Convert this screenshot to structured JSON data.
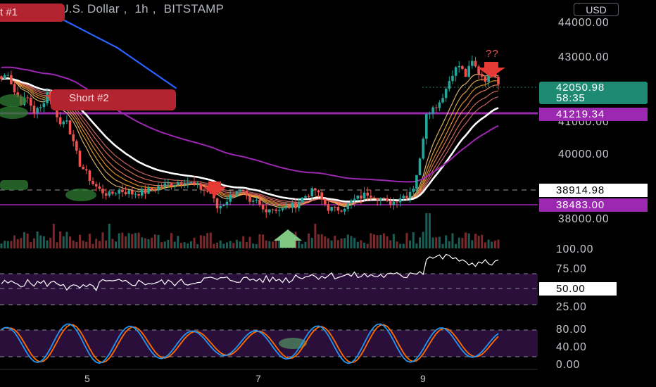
{
  "header": {
    "symbol": "Bitcoin / U.S. Dollar",
    "interval": "1h",
    "exchange": "BITSTAMP",
    "currency_button": "USD"
  },
  "price_axis": {
    "ticks": [
      "44000.00",
      "43000.00",
      "41000.00",
      "40000.00",
      "38000.00"
    ]
  },
  "price_tags": {
    "last_price": "42050.98",
    "countdown": "58:35",
    "level_upper": "41219.34",
    "level_mid": "38914.98",
    "level_lower": "38483.00"
  },
  "annotations": {
    "short_1": "t #1",
    "short_2": "Short #2",
    "question": "??"
  },
  "volume_axis": {
    "tick": "100.00"
  },
  "rsi_axis": {
    "ticks": [
      "75.00",
      "25.00"
    ],
    "current": "50.00"
  },
  "stoch_axis": {
    "ticks": [
      "80.00",
      "40.00",
      "0.00"
    ]
  },
  "time_axis": {
    "labels": [
      "5",
      "7",
      "9"
    ]
  },
  "colors": {
    "up": "#26a69a",
    "down": "#ef5350",
    "level_purple": "#9c27b0",
    "ma200": "#ffffff",
    "ma_purple": "#9c27b0",
    "blue_line": "#2962ff",
    "rsi_band": "#2a0f3a",
    "stoch_k": "#2196f3",
    "stoch_d": "#ff6d00"
  },
  "chart_data": {
    "type": "candlestick",
    "symbol": "Bitcoin / U.S. Dollar",
    "timeframe": "1h",
    "exchange": "BITSTAMP",
    "price_range": [
      37300,
      44500
    ],
    "keypoints_close": [
      [
        0,
        42300
      ],
      [
        2,
        42500
      ],
      [
        4,
        41900
      ],
      [
        6,
        41600
      ],
      [
        8,
        41700
      ],
      [
        10,
        41300
      ],
      [
        12,
        41400
      ],
      [
        14,
        41900
      ],
      [
        16,
        41500
      ],
      [
        18,
        40900
      ],
      [
        20,
        41100
      ],
      [
        22,
        40300
      ],
      [
        24,
        39700
      ],
      [
        26,
        39400
      ],
      [
        28,
        39100
      ],
      [
        30,
        38900
      ],
      [
        33,
        38750
      ],
      [
        36,
        38900
      ],
      [
        40,
        38800
      ],
      [
        44,
        38850
      ],
      [
        48,
        39000
      ],
      [
        52,
        39100
      ],
      [
        56,
        39200
      ],
      [
        58,
        39100
      ],
      [
        62,
        38900
      ],
      [
        64,
        38800
      ],
      [
        66,
        38350
      ],
      [
        68,
        38500
      ],
      [
        70,
        38700
      ],
      [
        72,
        38900
      ],
      [
        74,
        38800
      ],
      [
        76,
        38450
      ],
      [
        78,
        38550
      ],
      [
        80,
        38300
      ],
      [
        82,
        38350
      ],
      [
        86,
        38300
      ],
      [
        88,
        38400
      ],
      [
        90,
        38450
      ],
      [
        92,
        38650
      ],
      [
        94,
        38800
      ],
      [
        96,
        38900
      ],
      [
        98,
        38600
      ],
      [
        100,
        38350
      ],
      [
        102,
        38300
      ],
      [
        104,
        38350
      ],
      [
        106,
        38450
      ],
      [
        108,
        38600
      ],
      [
        110,
        38700
      ],
      [
        112,
        38800
      ],
      [
        114,
        38750
      ],
      [
        116,
        38650
      ],
      [
        118,
        38500
      ],
      [
        120,
        38550
      ],
      [
        122,
        38700
      ],
      [
        124,
        38750
      ],
      [
        126,
        39000
      ],
      [
        128,
        39800
      ],
      [
        130,
        41300
      ],
      [
        132,
        41400
      ],
      [
        134,
        41600
      ],
      [
        136,
        42000
      ],
      [
        138,
        42500
      ],
      [
        140,
        42700
      ],
      [
        142,
        42400
      ],
      [
        144,
        42800
      ],
      [
        146,
        42500
      ],
      [
        148,
        42300
      ],
      [
        150,
        42700
      ],
      [
        152,
        42200
      ]
    ],
    "levels": [
      41219.34,
      38914.98,
      38483.0
    ],
    "rsi_levels": [
      25,
      50,
      75
    ],
    "stoch_levels": [
      20,
      80
    ]
  }
}
